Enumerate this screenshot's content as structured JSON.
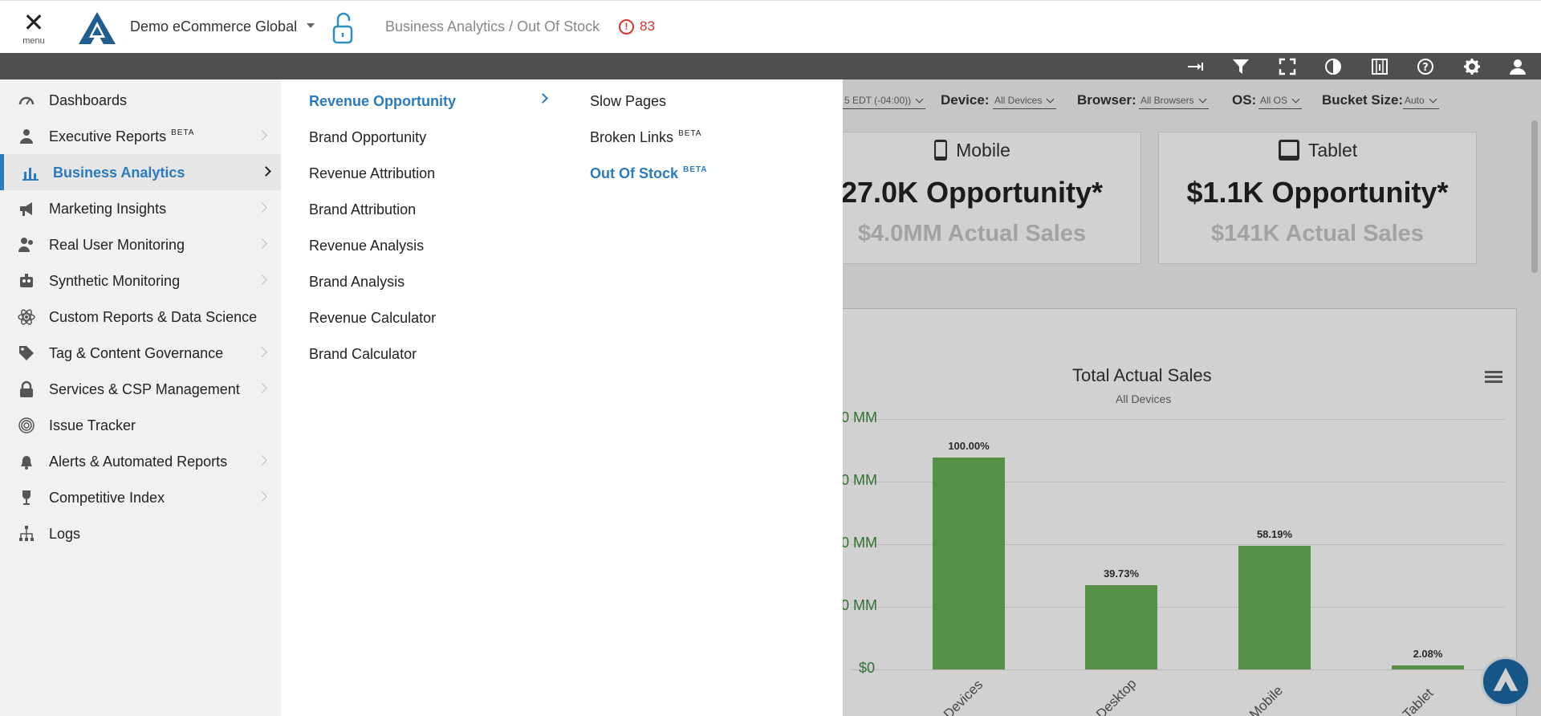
{
  "header": {
    "menu_label": "menu",
    "org_name": "Demo eCommerce Global",
    "breadcrumb": "Business Analytics / Out Of Stock",
    "alert_count": "83",
    "accent_color": "#2a7ac0",
    "alert_color": "#d9312b"
  },
  "toolbar": {
    "icons": [
      "collapse-arrow-icon",
      "filter-icon",
      "fullscreen-icon",
      "contrast-icon",
      "filmstrip-icon",
      "help-icon",
      "gear-icon",
      "user-icon"
    ]
  },
  "filters": {
    "timezone_value": "5 EDT (-04:00))",
    "device_label": "Device:",
    "device_value": "All Devices",
    "browser_label": "Browser:",
    "browser_value": "All Browsers",
    "os_label": "OS:",
    "os_value": "All OS",
    "bucket_label": "Bucket Size:",
    "bucket_value": "Auto"
  },
  "cards": {
    "mobile": {
      "title": "Mobile",
      "opportunity": "27.0K Opportunity*",
      "actual": "$4.0MM Actual Sales"
    },
    "tablet": {
      "title": "Tablet",
      "opportunity": "$1.1K Opportunity*",
      "actual": "$141K Actual Sales"
    }
  },
  "chart_data": {
    "type": "bar",
    "title": "Total Actual Sales",
    "subtitle": "All Devices",
    "categories": [
      "Devices",
      "Desktop",
      "Mobile",
      "Tablet"
    ],
    "values": [
      100.0,
      39.73,
      58.19,
      2.08
    ],
    "data_labels": [
      "100.00%",
      "39.73%",
      "58.19%",
      "2.08%"
    ],
    "ytick_labels": [
      "0 MM",
      "0 MM",
      "0 MM",
      "0 MM",
      "$0"
    ],
    "ylim": [
      0,
      115
    ],
    "bar_color": "#6ab056",
    "grid": true
  },
  "nav": {
    "items": [
      {
        "label": "Dashboards",
        "icon": "speedometer-icon",
        "beta": "",
        "chevron": false,
        "active": false
      },
      {
        "label": "Executive Reports",
        "icon": "executive-icon",
        "beta": "BETA",
        "chevron": true,
        "active": false
      },
      {
        "label": "Business Analytics",
        "icon": "bar-chart-icon",
        "beta": "",
        "chevron": true,
        "active": true
      },
      {
        "label": "Marketing Insights",
        "icon": "megaphone-icon",
        "beta": "",
        "chevron": true,
        "active": false
      },
      {
        "label": "Real User Monitoring",
        "icon": "users-icon",
        "beta": "",
        "chevron": true,
        "active": false
      },
      {
        "label": "Synthetic Monitoring",
        "icon": "robot-icon",
        "beta": "",
        "chevron": true,
        "active": false
      },
      {
        "label": "Custom Reports & Data Science",
        "icon": "atom-icon",
        "beta": "",
        "chevron": false,
        "active": false
      },
      {
        "label": "Tag & Content Governance",
        "icon": "tag-icon",
        "beta": "",
        "chevron": true,
        "active": false
      },
      {
        "label": "Services & CSP Management",
        "icon": "lock-icon",
        "beta": "",
        "chevron": true,
        "active": false
      },
      {
        "label": "Issue Tracker",
        "icon": "fingerprint-icon",
        "beta": "",
        "chevron": false,
        "active": false
      },
      {
        "label": "Alerts & Automated Reports",
        "icon": "bell-icon",
        "beta": "",
        "chevron": true,
        "active": false
      },
      {
        "label": "Competitive Index",
        "icon": "trophy-icon",
        "beta": "",
        "chevron": true,
        "active": false
      },
      {
        "label": "Logs",
        "icon": "sitemap-icon",
        "beta": "",
        "chevron": false,
        "active": false
      }
    ]
  },
  "submenu": {
    "items": [
      {
        "label": "Revenue Opportunity",
        "active": true
      },
      {
        "label": "Brand Opportunity",
        "active": false
      },
      {
        "label": "Revenue Attribution",
        "active": false
      },
      {
        "label": "Brand Attribution",
        "active": false
      },
      {
        "label": "Revenue Analysis",
        "active": false
      },
      {
        "label": "Brand Analysis",
        "active": false
      },
      {
        "label": "Revenue Calculator",
        "active": false
      },
      {
        "label": "Brand Calculator",
        "active": false
      }
    ]
  },
  "subsubmenu": {
    "items": [
      {
        "label": "Slow Pages",
        "beta": "",
        "active": false
      },
      {
        "label": "Broken Links",
        "beta": "BETA",
        "active": false
      },
      {
        "label": "Out Of Stock",
        "beta": "BETA",
        "active": true
      }
    ]
  }
}
